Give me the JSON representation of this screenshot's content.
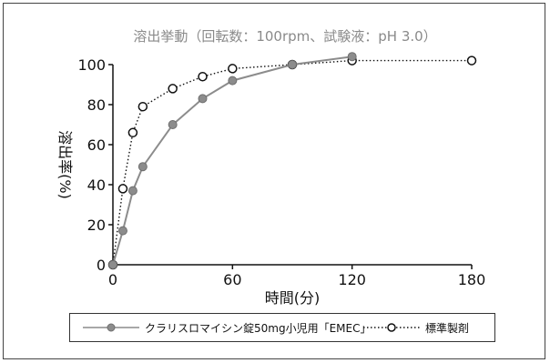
{
  "chart_data": {
    "type": "line",
    "title": "溶出挙動（回転数：100rpm、試験液：pH 3.0）",
    "xlabel": "時間(分)",
    "ylabel": "溶出率(%)",
    "xlim": [
      0,
      180
    ],
    "ylim": [
      0,
      100
    ],
    "xticks": [
      0,
      60,
      120,
      180
    ],
    "yticks": [
      0,
      20,
      40,
      60,
      80,
      100
    ],
    "grid": false,
    "legend_position": "bottom",
    "series": [
      {
        "name": "クラリスロマイシン錠50mg小児用「EMEC」",
        "style": "solid",
        "marker": "filled-circle",
        "color": "#8c8c8c",
        "x": [
          0,
          5,
          10,
          15,
          30,
          45,
          60,
          90,
          120
        ],
        "y": [
          0,
          17,
          37,
          49,
          70,
          83,
          92,
          100,
          104
        ]
      },
      {
        "name": "標準製剤",
        "style": "dotted",
        "marker": "open-circle",
        "color": "#111111",
        "x": [
          0,
          5,
          10,
          15,
          30,
          45,
          60,
          90,
          120,
          180
        ],
        "y": [
          0,
          38,
          66,
          79,
          88,
          94,
          98,
          100,
          102,
          102
        ]
      }
    ]
  }
}
